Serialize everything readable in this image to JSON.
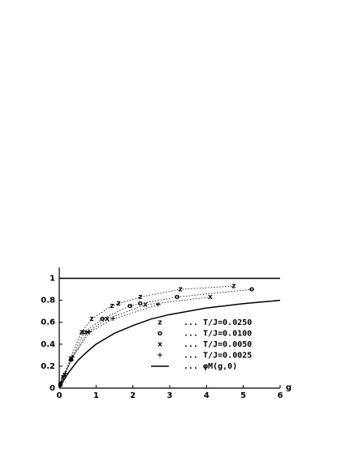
{
  "chart_data": {
    "type": "scatter",
    "x_label": "g",
    "xlim": [
      0,
      6
    ],
    "ylim": [
      0,
      1.1
    ],
    "xticks": [
      0,
      1,
      2,
      3,
      4,
      5,
      6
    ],
    "yticks": [
      0,
      0.2,
      0.4,
      0.6,
      0.8,
      1
    ],
    "hlines": [
      1
    ],
    "series": [
      {
        "name": "... T/J=0.0250",
        "marker": "z",
        "line": "dotted",
        "color": "#000",
        "x": [
          0.02,
          0.1,
          0.3,
          0.6,
          0.88,
          1.43,
          1.61,
          2.2,
          3.29,
          4.74
        ],
        "values": [
          0.03,
          0.1,
          0.27,
          0.51,
          0.63,
          0.75,
          0.77,
          0.83,
          0.9,
          0.93
        ]
      },
      {
        "name": "... T/J=0.0100",
        "marker": "o",
        "line": "dotted",
        "color": "#000",
        "x": [
          0.03,
          0.12,
          0.32,
          0.68,
          1.17,
          1.92,
          2.2,
          3.2,
          5.23
        ],
        "values": [
          0.03,
          0.1,
          0.26,
          0.51,
          0.63,
          0.75,
          0.77,
          0.83,
          0.9
        ]
      },
      {
        "name": "... T/J=0.0050",
        "marker": "x",
        "line": "dotted",
        "color": "#000",
        "x": [
          0.04,
          0.14,
          0.34,
          0.77,
          1.3,
          2.34,
          4.1
        ],
        "values": [
          0.04,
          0.12,
          0.27,
          0.51,
          0.63,
          0.76,
          0.83
        ]
      },
      {
        "name": "... T/J=0.0025",
        "marker": "+",
        "line": "dotted",
        "color": "#000",
        "x": [
          0.05,
          0.16,
          0.36,
          0.82,
          1.46,
          2.69
        ],
        "values": [
          0.05,
          0.13,
          0.28,
          0.51,
          0.63,
          0.76
        ]
      },
      {
        "name": "... φM(g,0)",
        "line": "solid",
        "color": "#000",
        "x": [
          0,
          0.1,
          0.25,
          0.5,
          0.75,
          1,
          1.5,
          2,
          2.5,
          3,
          4,
          5,
          6
        ],
        "values": [
          0,
          0.06,
          0.14,
          0.25,
          0.33,
          0.4,
          0.5,
          0.57,
          0.63,
          0.67,
          0.73,
          0.77,
          0.8
        ]
      }
    ]
  }
}
